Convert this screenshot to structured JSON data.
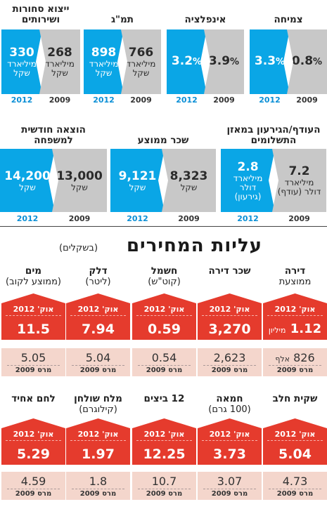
{
  "chart_data": [
    {
      "type": "bar",
      "title": "צמיחה",
      "series": [
        {
          "year": "2012",
          "value": "3.3",
          "unit": "%"
        },
        {
          "year": "2009",
          "value": "0.8",
          "unit": "%"
        }
      ]
    },
    {
      "type": "bar",
      "title": "אינפלציה",
      "series": [
        {
          "year": "2012",
          "value": "3.2",
          "unit": "%"
        },
        {
          "year": "2009",
          "value": "3.9",
          "unit": "%"
        }
      ]
    },
    {
      "type": "bar",
      "title": "תמ\"ג",
      "series": [
        {
          "year": "2012",
          "value": "898",
          "unit": "מיליארד שקל"
        },
        {
          "year": "2009",
          "value": "766",
          "unit": "מיליארד שקל"
        }
      ]
    },
    {
      "type": "bar",
      "title": "ייצוא סחורות ושירותים",
      "series": [
        {
          "year": "2012",
          "value": "330",
          "unit": "מיליארד שקל"
        },
        {
          "year": "2009",
          "value": "268",
          "unit": "מיליארד שקל"
        }
      ]
    },
    {
      "type": "bar",
      "title": "העודף/הגירעון במאזן התשלומים",
      "series": [
        {
          "year": "2012",
          "value": "2.8",
          "unit": "מיליארד דולר (גירעון)"
        },
        {
          "year": "2009",
          "value": "7.2",
          "unit": "מיליארד דולר (עודף)"
        }
      ]
    },
    {
      "type": "bar",
      "title": "שכר ממוצע",
      "series": [
        {
          "year": "2012",
          "value": "9,121",
          "unit": "שקל"
        },
        {
          "year": "2009",
          "value": "8,323",
          "unit": "שקל"
        }
      ]
    },
    {
      "type": "bar",
      "title": "הוצאה חודשית למשפחה",
      "series": [
        {
          "year": "2012",
          "value": "14,200",
          "unit": "שקל"
        },
        {
          "year": "2009",
          "value": "13,000",
          "unit": "שקל"
        }
      ]
    }
  ],
  "prices": {
    "title": "עליות המחירים",
    "subtitle": "(בשקלים)",
    "new_label": "אוק' 2012",
    "old_label": "מרס 2009",
    "items": [
      {
        "name": "דירה\nממוצעת",
        "new": "1.12",
        "new_unit": "מיליון",
        "old": "826",
        "old_unit": "אלף"
      },
      {
        "name": "שכר דירה",
        "new": "3,270",
        "old": "2,623"
      },
      {
        "name": "חשמל\n(קוט\"ש)",
        "new": "0.59",
        "old": "0.54"
      },
      {
        "name": "דלק\n(ליטר)",
        "new": "7.94",
        "old": "5.04"
      },
      {
        "name": "מים\n(ממוצע לקוב)",
        "new": "11.5",
        "old": "5.05"
      },
      {
        "name": "שקית חלב",
        "new": "5.04",
        "old": "4.73"
      },
      {
        "name": "חמאה\n(100 גרם)",
        "new": "3.73",
        "old": "3.07"
      },
      {
        "name": "12 ביצים",
        "new": "12.25",
        "old": "10.7"
      },
      {
        "name": "מלח שולחן\n(קילוגרם)",
        "new": "1.97",
        "old": "1.8"
      },
      {
        "name": "לחם אחיד",
        "new": "5.29",
        "old": "4.59"
      }
    ]
  },
  "colors": {
    "blue": "#0aa6e6",
    "gray": "#c8c8c8",
    "red": "#e53b2d",
    "pink": "#f4d6cc"
  }
}
